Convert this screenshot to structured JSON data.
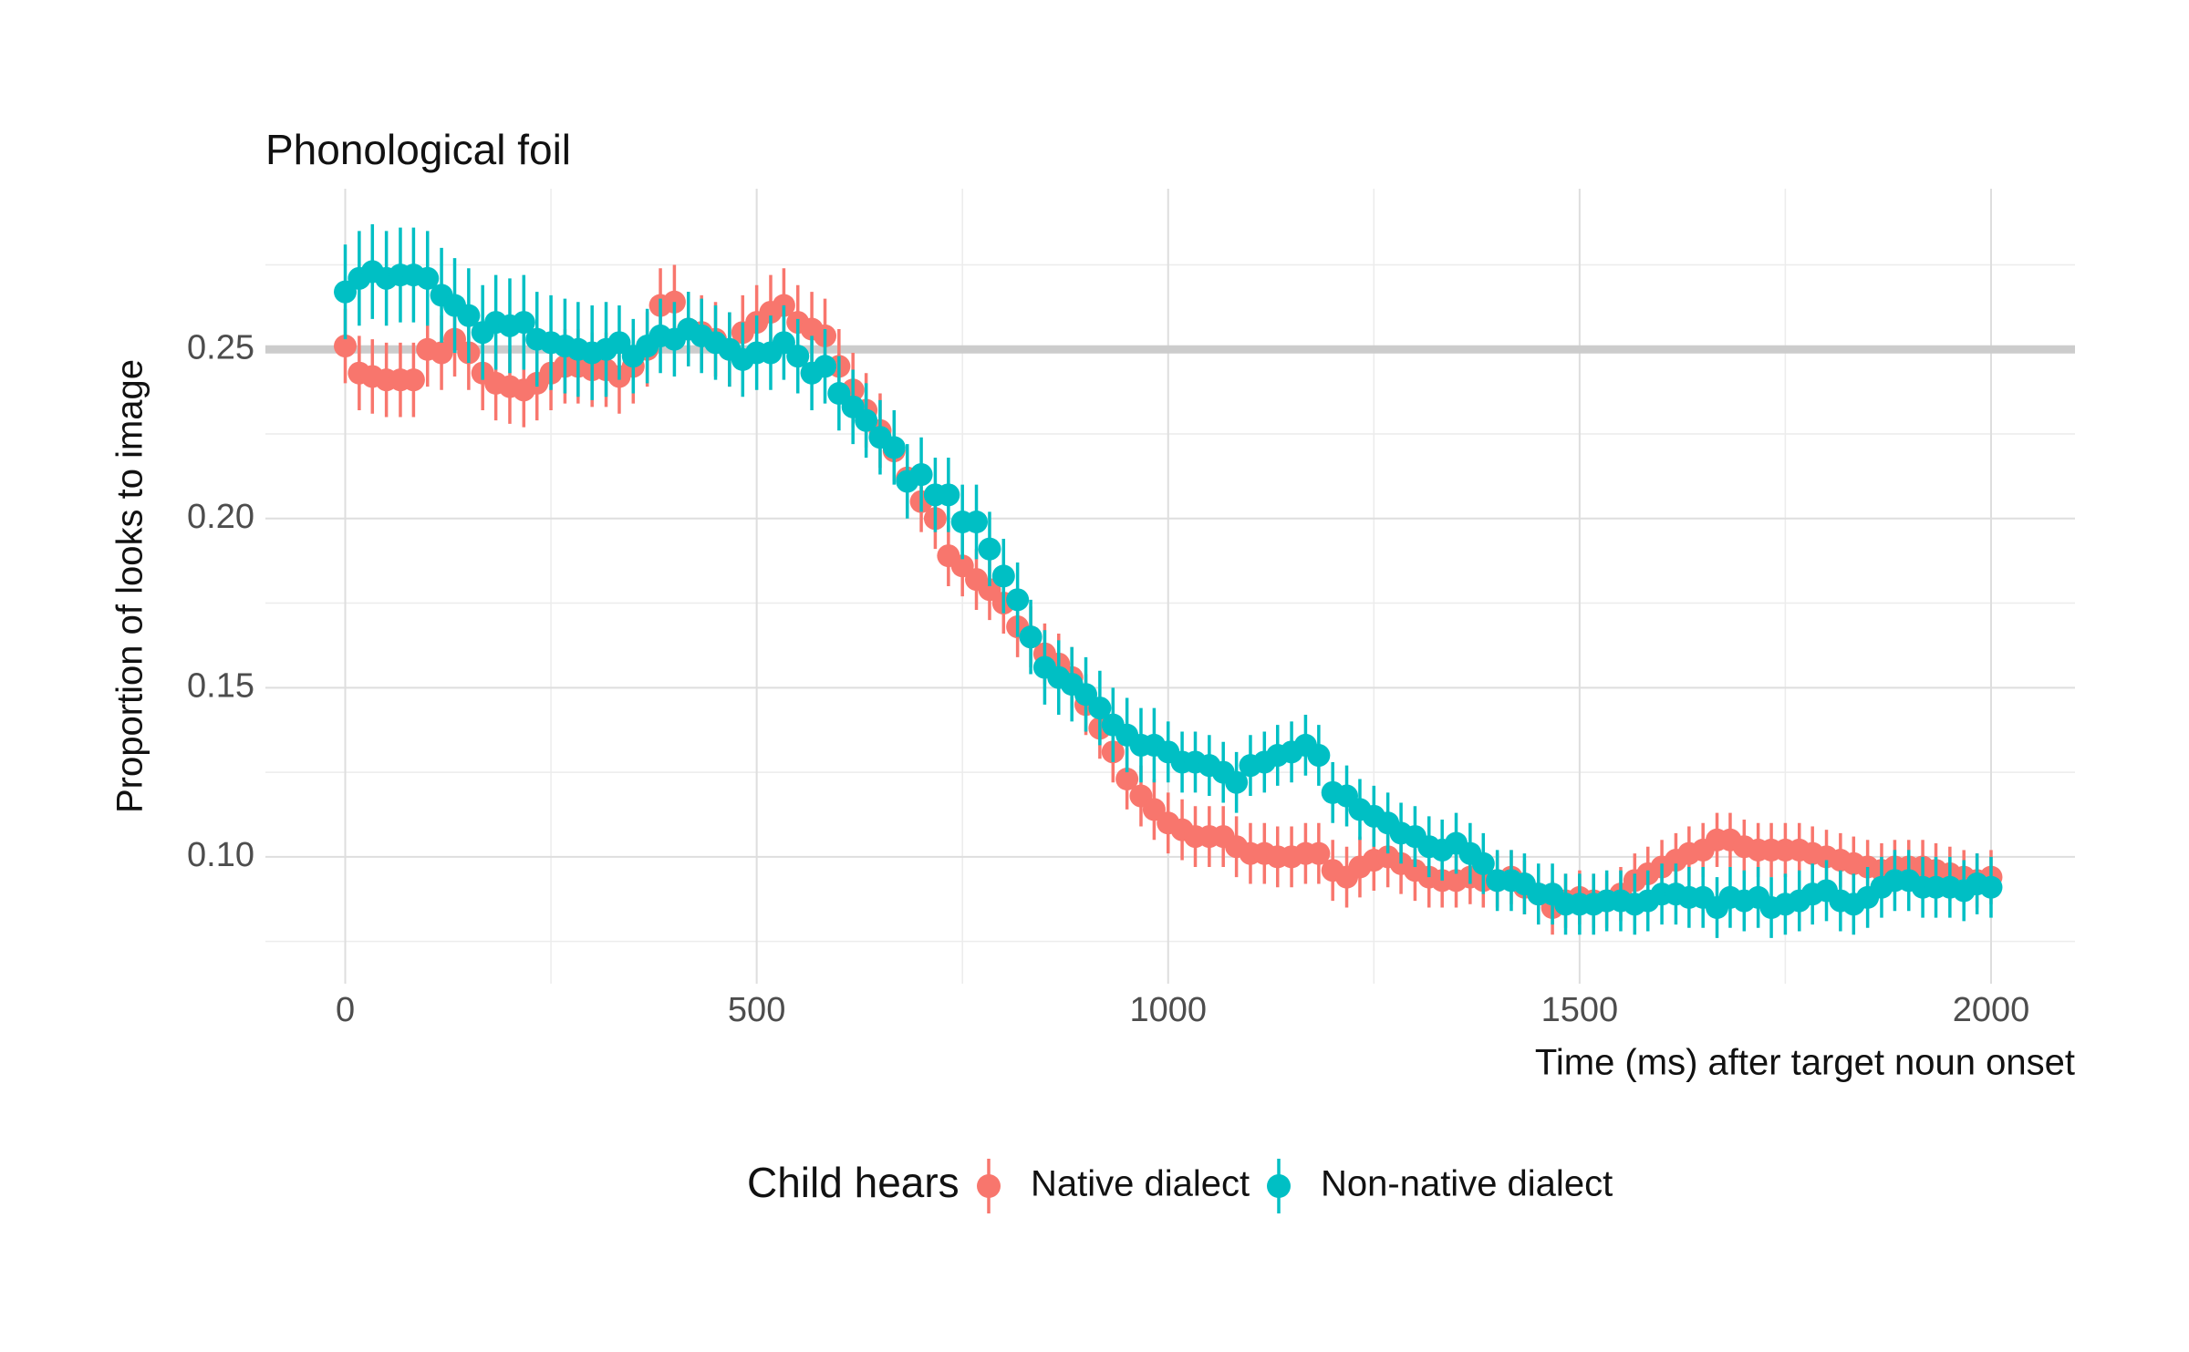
{
  "chart_data": {
    "type": "scatter",
    "title": "Phonological foil",
    "x_label": "Time (ms) after target noun onset",
    "y_label": "Proportion of looks to image",
    "legend_title": "Child hears",
    "legend_position": "bottom",
    "grid": true,
    "reference_line": {
      "y": 0.25,
      "color": "#cccccc"
    },
    "xlim": [
      -97,
      2102
    ],
    "ylim": [
      0.0625,
      0.2975
    ],
    "xticks": [
      0,
      500,
      1000,
      1500,
      2000
    ],
    "yticks": [
      {
        "value": 0.1,
        "label": "0.10"
      },
      {
        "value": 0.15,
        "label": "0.15"
      },
      {
        "value": 0.2,
        "label": "0.20"
      },
      {
        "value": 0.25,
        "label": "0.25"
      }
    ],
    "minor_xticks": [
      250,
      750,
      1250,
      1750
    ],
    "minor_yticks": [
      0.075,
      0.125,
      0.175,
      0.225,
      0.275
    ],
    "x": [
      0,
      17,
      33,
      50,
      67,
      83,
      100,
      117,
      133,
      150,
      167,
      183,
      200,
      217,
      233,
      250,
      267,
      283,
      300,
      317,
      333,
      350,
      367,
      383,
      400,
      417,
      433,
      450,
      467,
      483,
      500,
      517,
      533,
      550,
      567,
      583,
      600,
      617,
      633,
      650,
      667,
      683,
      700,
      717,
      733,
      750,
      767,
      783,
      800,
      817,
      833,
      850,
      867,
      883,
      900,
      917,
      933,
      950,
      967,
      983,
      1000,
      1017,
      1033,
      1050,
      1067,
      1083,
      1100,
      1117,
      1133,
      1150,
      1167,
      1183,
      1200,
      1217,
      1233,
      1250,
      1267,
      1283,
      1300,
      1317,
      1333,
      1350,
      1367,
      1383,
      1400,
      1417,
      1433,
      1450,
      1467,
      1483,
      1500,
      1517,
      1533,
      1550,
      1567,
      1583,
      1600,
      1617,
      1633,
      1650,
      1667,
      1683,
      1700,
      1717,
      1733,
      1750,
      1767,
      1783,
      1800,
      1817,
      1833,
      1850,
      1867,
      1883,
      1900,
      1917,
      1933,
      1950,
      1967,
      1983,
      2000
    ],
    "series": [
      {
        "name": "Native dialect",
        "color": "#F8766D",
        "values": [
          0.251,
          0.243,
          0.242,
          0.241,
          0.241,
          0.241,
          0.25,
          0.249,
          0.253,
          0.249,
          0.243,
          0.24,
          0.239,
          0.238,
          0.24,
          0.243,
          0.245,
          0.245,
          0.244,
          0.244,
          0.242,
          0.245,
          0.25,
          0.263,
          0.264,
          0.256,
          0.255,
          0.253,
          0.25,
          0.255,
          0.258,
          0.261,
          0.263,
          0.258,
          0.256,
          0.254,
          0.245,
          0.238,
          0.232,
          0.226,
          0.22,
          0.212,
          0.205,
          0.2,
          0.189,
          0.186,
          0.182,
          0.179,
          0.175,
          0.168,
          0.165,
          0.16,
          0.157,
          0.153,
          0.145,
          0.138,
          0.131,
          0.123,
          0.118,
          0.114,
          0.11,
          0.108,
          0.106,
          0.106,
          0.106,
          0.103,
          0.101,
          0.101,
          0.1,
          0.1,
          0.101,
          0.101,
          0.096,
          0.094,
          0.097,
          0.099,
          0.1,
          0.098,
          0.096,
          0.094,
          0.093,
          0.093,
          0.094,
          0.093,
          0.093,
          0.094,
          0.091,
          0.089,
          0.085,
          0.087,
          0.088,
          0.087,
          0.087,
          0.089,
          0.093,
          0.095,
          0.097,
          0.099,
          0.101,
          0.102,
          0.105,
          0.105,
          0.103,
          0.102,
          0.102,
          0.102,
          0.102,
          0.101,
          0.1,
          0.099,
          0.098,
          0.097,
          0.096,
          0.097,
          0.097,
          0.097,
          0.096,
          0.095,
          0.094,
          0.093,
          0.094
        ],
        "errors": [
          0.011,
          0.011,
          0.011,
          0.011,
          0.011,
          0.011,
          0.011,
          0.011,
          0.011,
          0.011,
          0.011,
          0.011,
          0.011,
          0.011,
          0.011,
          0.011,
          0.011,
          0.011,
          0.011,
          0.011,
          0.011,
          0.011,
          0.011,
          0.011,
          0.011,
          0.011,
          0.011,
          0.011,
          0.011,
          0.011,
          0.011,
          0.011,
          0.011,
          0.011,
          0.011,
          0.011,
          0.011,
          0.011,
          0.011,
          0.011,
          0.009,
          0.009,
          0.009,
          0.009,
          0.009,
          0.009,
          0.009,
          0.009,
          0.009,
          0.009,
          0.009,
          0.009,
          0.009,
          0.009,
          0.009,
          0.009,
          0.009,
          0.009,
          0.009,
          0.009,
          0.009,
          0.009,
          0.009,
          0.009,
          0.009,
          0.009,
          0.009,
          0.009,
          0.009,
          0.009,
          0.009,
          0.009,
          0.009,
          0.009,
          0.009,
          0.009,
          0.009,
          0.009,
          0.009,
          0.009,
          0.008,
          0.008,
          0.008,
          0.008,
          0.008,
          0.008,
          0.008,
          0.008,
          0.008,
          0.008,
          0.008,
          0.008,
          0.008,
          0.008,
          0.008,
          0.008,
          0.008,
          0.008,
          0.008,
          0.008,
          0.008,
          0.008,
          0.008,
          0.008,
          0.008,
          0.008,
          0.008,
          0.008,
          0.008,
          0.008,
          0.008,
          0.008,
          0.008,
          0.008,
          0.008,
          0.008,
          0.008,
          0.008,
          0.008,
          0.008,
          0.008
        ]
      },
      {
        "name": "Non-native dialect",
        "color": "#00BFC4",
        "values": [
          0.267,
          0.271,
          0.273,
          0.271,
          0.272,
          0.272,
          0.271,
          0.266,
          0.263,
          0.26,
          0.255,
          0.258,
          0.257,
          0.258,
          0.253,
          0.252,
          0.251,
          0.25,
          0.249,
          0.25,
          0.252,
          0.248,
          0.251,
          0.254,
          0.253,
          0.256,
          0.254,
          0.252,
          0.25,
          0.247,
          0.249,
          0.249,
          0.252,
          0.248,
          0.243,
          0.245,
          0.237,
          0.233,
          0.229,
          0.224,
          0.221,
          0.211,
          0.213,
          0.207,
          0.207,
          0.199,
          0.199,
          0.191,
          0.183,
          0.176,
          0.165,
          0.156,
          0.153,
          0.151,
          0.148,
          0.144,
          0.139,
          0.136,
          0.133,
          0.133,
          0.131,
          0.128,
          0.128,
          0.127,
          0.125,
          0.122,
          0.127,
          0.128,
          0.13,
          0.131,
          0.133,
          0.13,
          0.119,
          0.118,
          0.114,
          0.112,
          0.11,
          0.107,
          0.106,
          0.103,
          0.102,
          0.104,
          0.101,
          0.098,
          0.093,
          0.093,
          0.092,
          0.089,
          0.089,
          0.086,
          0.086,
          0.086,
          0.087,
          0.087,
          0.086,
          0.087,
          0.089,
          0.089,
          0.088,
          0.088,
          0.085,
          0.088,
          0.087,
          0.088,
          0.085,
          0.086,
          0.087,
          0.089,
          0.09,
          0.087,
          0.086,
          0.088,
          0.091,
          0.093,
          0.093,
          0.091,
          0.091,
          0.091,
          0.09,
          0.092,
          0.091
        ],
        "errors": [
          0.014,
          0.014,
          0.014,
          0.014,
          0.014,
          0.014,
          0.014,
          0.014,
          0.014,
          0.014,
          0.014,
          0.014,
          0.014,
          0.014,
          0.014,
          0.014,
          0.014,
          0.014,
          0.014,
          0.014,
          0.011,
          0.011,
          0.011,
          0.011,
          0.011,
          0.011,
          0.011,
          0.011,
          0.011,
          0.011,
          0.011,
          0.011,
          0.011,
          0.011,
          0.011,
          0.011,
          0.011,
          0.011,
          0.011,
          0.011,
          0.011,
          0.011,
          0.011,
          0.011,
          0.011,
          0.011,
          0.011,
          0.011,
          0.011,
          0.011,
          0.011,
          0.011,
          0.011,
          0.011,
          0.011,
          0.011,
          0.011,
          0.011,
          0.011,
          0.011,
          0.009,
          0.009,
          0.009,
          0.009,
          0.009,
          0.009,
          0.009,
          0.009,
          0.009,
          0.009,
          0.009,
          0.009,
          0.009,
          0.009,
          0.009,
          0.009,
          0.009,
          0.009,
          0.009,
          0.009,
          0.009,
          0.009,
          0.009,
          0.009,
          0.009,
          0.009,
          0.009,
          0.009,
          0.009,
          0.009,
          0.009,
          0.009,
          0.009,
          0.009,
          0.009,
          0.009,
          0.009,
          0.009,
          0.009,
          0.009,
          0.009,
          0.009,
          0.009,
          0.009,
          0.009,
          0.009,
          0.009,
          0.009,
          0.009,
          0.009,
          0.009,
          0.009,
          0.009,
          0.009,
          0.009,
          0.009,
          0.009,
          0.009,
          0.009,
          0.009,
          0.009
        ]
      }
    ]
  }
}
